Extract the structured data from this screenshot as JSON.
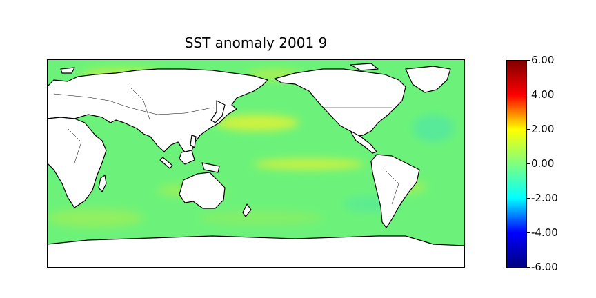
{
  "title": "SST anomaly 2001 9",
  "colorbar": {
    "ticks": [
      "6.00",
      "4.00",
      "2.00",
      "0.00",
      "-2.00",
      "-4.00",
      "-6.00"
    ],
    "range": [
      -6,
      6
    ],
    "colormap": "jet",
    "colors": [
      "#000080",
      "#0000ff",
      "#00ffff",
      "#7fff7f",
      "#ffff00",
      "#ff0000",
      "#800000"
    ]
  },
  "map": {
    "projection": "equirectangular",
    "center_longitude": 180,
    "ocean_base_color": "#6cf27a",
    "land_color": "#ffffff",
    "warm_anomaly_color": "#d8f23a"
  }
}
